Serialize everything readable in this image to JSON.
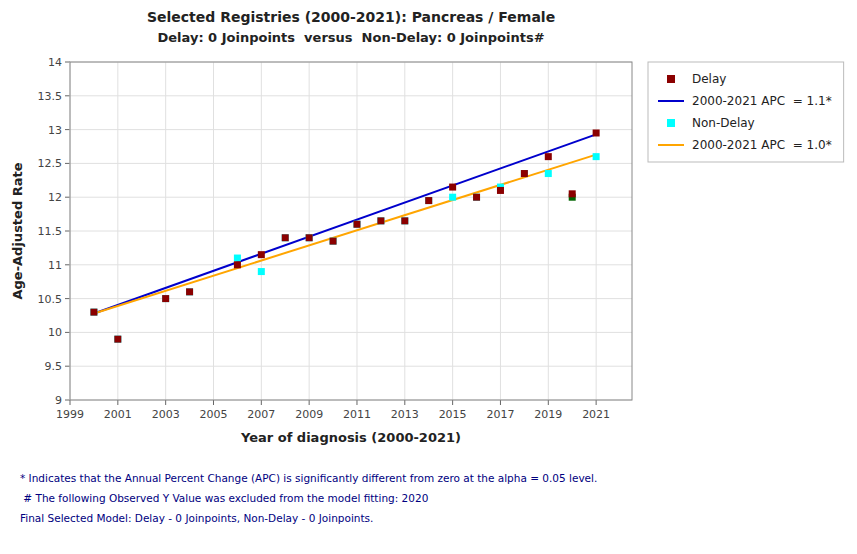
{
  "chart_data": {
    "type": "scatter",
    "title": "Selected Registries (2000-2021): Pancreas / Female",
    "subtitle": "Delay: 0 Joinpoints  versus  Non-Delay: 0 Joinpoints#",
    "x_label": "Year of diagnosis (2000-2021)",
    "y_label": "Age-Adjusted Rate",
    "xlim": [
      1999,
      2022.5
    ],
    "ylim": [
      9,
      14
    ],
    "xticks": [
      1999,
      2001,
      2003,
      2005,
      2007,
      2009,
      2011,
      2013,
      2015,
      2017,
      2019,
      2021
    ],
    "yticks": [
      9,
      9.5,
      10,
      10.5,
      11,
      11.5,
      12,
      12.5,
      13,
      13.5,
      14
    ],
    "grid": true,
    "legend": "right",
    "series": [
      {
        "name": "Delay",
        "type": "scatter",
        "marker": "square",
        "color": "#8B0000",
        "x": [
          2000,
          2001,
          2003,
          2004,
          2006,
          2007,
          2008,
          2009,
          2010,
          2011,
          2012,
          2013,
          2014,
          2015,
          2016,
          2017,
          2018,
          2019,
          2021
        ],
        "values": [
          10.3,
          9.9,
          10.5,
          10.6,
          11.0,
          11.15,
          11.4,
          11.4,
          11.35,
          11.6,
          11.65,
          11.65,
          11.95,
          12.15,
          12.0,
          12.1,
          12.35,
          12.6,
          12.95
        ]
      },
      {
        "name": "2000-2021 APC  = 1.1*",
        "type": "line",
        "line_style": "solid",
        "color": "#0000CC",
        "x": [
          2000,
          2021
        ],
        "values": [
          10.28,
          12.93
        ]
      },
      {
        "name": "Non-Delay",
        "type": "scatter",
        "marker": "square",
        "color": "#00FFFF",
        "x": [
          2000,
          2001,
          2003,
          2004,
          2006,
          2007,
          2008,
          2009,
          2010,
          2011,
          2012,
          2013,
          2014,
          2015,
          2016,
          2017,
          2018,
          2019,
          2021
        ],
        "values": [
          10.3,
          9.9,
          10.5,
          10.6,
          11.1,
          10.9,
          11.4,
          11.4,
          11.35,
          11.6,
          11.65,
          11.65,
          11.95,
          12.0,
          12.0,
          12.15,
          12.35,
          12.35,
          12.6
        ]
      },
      {
        "name": "2000-2021 APC  = 1.0*",
        "type": "line",
        "line_style": "solid",
        "color": "#FFA500",
        "x": [
          2000,
          2021
        ],
        "values": [
          10.28,
          12.63
        ]
      },
      {
        "type": "scatter",
        "marker": "square",
        "color": "#8B0000",
        "x": [
          2020
        ],
        "values": [
          12.05
        ]
      },
      {
        "type": "scatter",
        "marker": "square",
        "color": "#006400",
        "x": [
          2020
        ],
        "values": [
          12.0
        ]
      }
    ],
    "annotations": [
      "* Indicates that the Annual Percent Change (APC) is significantly different from zero at the alpha = 0.05 level.",
      " # The following Observed Y Value was excluded from the model fitting: 2020",
      "Final Selected Model: Delay - 0 Joinpoints, Non-Delay - 0 Joinpoints."
    ]
  }
}
